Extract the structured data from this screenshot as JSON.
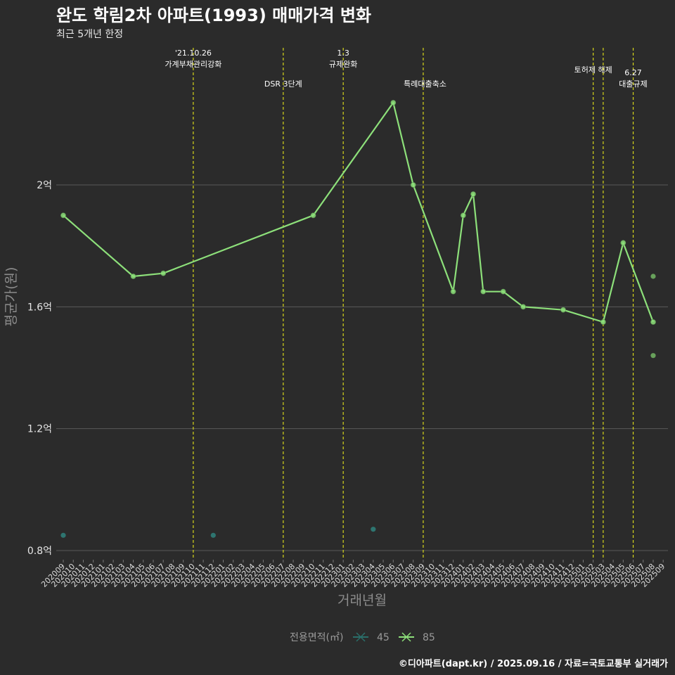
{
  "header": {
    "title": "완도 학림2차 아파트(1993) 매매가격 변화",
    "subtitle": "최근 5개년 한정"
  },
  "credit": "©디아파트(dapt.kr) / 2025.09.16 / 자료=국토교통부 실거래가",
  "colors": {
    "background": "#2b2b2b",
    "grid": "#5a5a5a",
    "event_line": "#d6d61a",
    "series_45": "#2a6f6a",
    "series_85": "#8de07a"
  },
  "chart_data": {
    "type": "line",
    "title": "완도 학림2차 아파트(1993) 매매가격 변화",
    "subtitle": "최근 5개년 한정",
    "xlabel": "거래년월",
    "ylabel": "평균가(원)",
    "ylim": [
      0.77,
      2.45
    ],
    "yticks": [
      {
        "value": 0.8,
        "label": "0.8억"
      },
      {
        "value": 1.2,
        "label": "1.2억"
      },
      {
        "value": 1.6,
        "label": "1.6억"
      },
      {
        "value": 2.0,
        "label": "2억"
      }
    ],
    "categories": [
      "202009",
      "202010",
      "202011",
      "202012",
      "202101",
      "202102",
      "202103",
      "202104",
      "202105",
      "202106",
      "202107",
      "202108",
      "202109",
      "202110",
      "202111",
      "202112",
      "202201",
      "202202",
      "202203",
      "202204",
      "202205",
      "202206",
      "202207",
      "202208",
      "202209",
      "202210",
      "202211",
      "202212",
      "202301",
      "202302",
      "202303",
      "202304",
      "202305",
      "202306",
      "202307",
      "202308",
      "202309",
      "202310",
      "202311",
      "202312",
      "202401",
      "202402",
      "202403",
      "202404",
      "202405",
      "202406",
      "202407",
      "202408",
      "202409",
      "202410",
      "202411",
      "202412",
      "202501",
      "202502",
      "202503",
      "202504",
      "202505",
      "202506",
      "202507",
      "202508",
      "202509"
    ],
    "events": [
      {
        "x": "202110",
        "lines": [
          "'21.10.26",
          "가계부채관리강화"
        ],
        "row": 0
      },
      {
        "x": "202207",
        "lines": [
          "DSR 3단계"
        ],
        "row": 1
      },
      {
        "x": "202301",
        "lines": [
          "1.3",
          "규제완화"
        ],
        "row": 0
      },
      {
        "x": "202309",
        "lines": [
          "특례대출축소"
        ],
        "row": 1,
        "align": "right"
      },
      {
        "x": "202502",
        "lines": [
          "토허제 해제"
        ],
        "row": 0
      },
      {
        "x": "202503",
        "lines": [],
        "row": 0
      },
      {
        "x": "202506",
        "lines": [
          "6.27",
          "대출규제"
        ],
        "row": 1
      }
    ],
    "series": [
      {
        "name": "45",
        "line": [],
        "points": [
          {
            "x": "202009",
            "y": 0.85
          },
          {
            "x": "202112",
            "y": 0.85
          },
          {
            "x": "202304",
            "y": 0.87
          }
        ]
      },
      {
        "name": "85",
        "line": [
          {
            "x": "202009",
            "y": 1.9
          },
          {
            "x": "202104",
            "y": 1.7
          },
          {
            "x": "202107",
            "y": 1.71
          },
          {
            "x": "202210",
            "y": 1.9
          },
          {
            "x": "202306",
            "y": 2.27
          },
          {
            "x": "202308",
            "y": 2.0
          },
          {
            "x": "202312",
            "y": 1.65
          },
          {
            "x": "202401",
            "y": 1.9
          },
          {
            "x": "202402",
            "y": 1.97
          },
          {
            "x": "202403",
            "y": 1.65
          },
          {
            "x": "202405",
            "y": 1.65
          },
          {
            "x": "202407",
            "y": 1.6
          },
          {
            "x": "202411",
            "y": 1.59
          },
          {
            "x": "202503",
            "y": 1.55
          },
          {
            "x": "202505",
            "y": 1.81
          },
          {
            "x": "202508",
            "y": 1.55
          }
        ],
        "points": [
          {
            "x": "202508",
            "y": 1.7
          },
          {
            "x": "202508",
            "y": 1.44
          }
        ]
      }
    ],
    "legend": {
      "title": "전용면적(㎡)",
      "items": [
        "45",
        "85"
      ],
      "position": "bottom"
    }
  }
}
